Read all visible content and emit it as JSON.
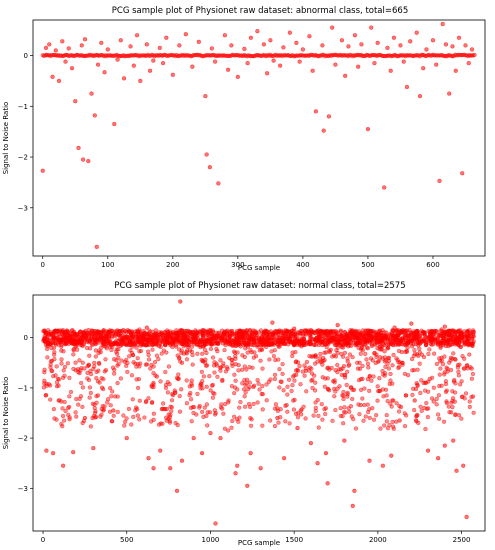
{
  "chart_data": [
    {
      "type": "scatter",
      "title": "PCG sample plot of Physionet raw dataset: abnormal class, total=665",
      "xlabel": "PCG sample",
      "ylabel": "Signal to Noise Ratio",
      "xlim": [
        -15,
        680
      ],
      "ylim": [
        -3.95,
        0.7
      ],
      "xticks": [
        0,
        100,
        200,
        300,
        400,
        500,
        600
      ],
      "yticks": [
        0,
        -1,
        -2,
        -3
      ],
      "grid": false,
      "legend": "none",
      "total": 665,
      "marker_color": "#ff0000",
      "points": [
        [
          0,
          -2.27
        ],
        [
          15,
          -0.42
        ],
        [
          25,
          -0.5
        ],
        [
          50,
          -0.9
        ],
        [
          55,
          -1.82
        ],
        [
          62,
          -2.05
        ],
        [
          70,
          -2.08
        ],
        [
          75,
          -0.75
        ],
        [
          80,
          -1.18
        ],
        [
          83,
          -3.77
        ],
        [
          95,
          -0.33
        ],
        [
          110,
          -1.35
        ],
        [
          125,
          -0.45
        ],
        [
          150,
          -0.5
        ],
        [
          170,
          -0.1
        ],
        [
          200,
          -0.38
        ],
        [
          250,
          -0.8
        ],
        [
          252,
          -1.95
        ],
        [
          257,
          -2.2
        ],
        [
          270,
          -2.52
        ],
        [
          300,
          -0.42
        ],
        [
          355,
          -0.1
        ],
        [
          420,
          -1.1
        ],
        [
          432,
          -1.48
        ],
        [
          440,
          -1.2
        ],
        [
          500,
          -1.45
        ],
        [
          525,
          -2.6
        ],
        [
          560,
          -0.62
        ],
        [
          580,
          -0.8
        ],
        [
          610,
          -2.47
        ],
        [
          625,
          -0.75
        ],
        [
          645,
          -2.32
        ],
        [
          5,
          0.15
        ],
        [
          10,
          0.22
        ],
        [
          20,
          0.1
        ],
        [
          30,
          0.28
        ],
        [
          40,
          0.14
        ],
        [
          60,
          0.2
        ],
        [
          65,
          0.32
        ],
        [
          90,
          0.25
        ],
        [
          100,
          0.12
        ],
        [
          120,
          0.3
        ],
        [
          135,
          0.18
        ],
        [
          145,
          0.4
        ],
        [
          160,
          0.22
        ],
        [
          180,
          0.15
        ],
        [
          190,
          0.35
        ],
        [
          210,
          0.2
        ],
        [
          220,
          0.42
        ],
        [
          240,
          0.27
        ],
        [
          260,
          0.14
        ],
        [
          280,
          0.4
        ],
        [
          290,
          0.2
        ],
        [
          310,
          0.13
        ],
        [
          320,
          0.35
        ],
        [
          330,
          0.48
        ],
        [
          340,
          0.22
        ],
        [
          350,
          0.3
        ],
        [
          370,
          0.16
        ],
        [
          380,
          0.45
        ],
        [
          390,
          0.25
        ],
        [
          400,
          0.12
        ],
        [
          410,
          0.38
        ],
        [
          430,
          0.2
        ],
        [
          445,
          0.55
        ],
        [
          460,
          0.3
        ],
        [
          470,
          0.18
        ],
        [
          480,
          0.4
        ],
        [
          490,
          0.22
        ],
        [
          505,
          0.55
        ],
        [
          515,
          0.25
        ],
        [
          530,
          0.15
        ],
        [
          540,
          0.35
        ],
        [
          550,
          0.2
        ],
        [
          565,
          0.28
        ],
        [
          575,
          0.45
        ],
        [
          590,
          0.12
        ],
        [
          600,
          0.3
        ],
        [
          615,
          0.62
        ],
        [
          620,
          0.22
        ],
        [
          630,
          0.18
        ],
        [
          640,
          0.35
        ],
        [
          650,
          0.2
        ],
        [
          660,
          0.12
        ],
        [
          35,
          -0.12
        ],
        [
          45,
          -0.25
        ],
        [
          85,
          -0.18
        ],
        [
          115,
          -0.08
        ],
        [
          140,
          -0.2
        ],
        [
          165,
          -0.3
        ],
        [
          185,
          -0.15
        ],
        [
          230,
          -0.22
        ],
        [
          265,
          -0.12
        ],
        [
          285,
          -0.28
        ],
        [
          315,
          -0.15
        ],
        [
          345,
          -0.35
        ],
        [
          365,
          -0.2
        ],
        [
          395,
          -0.12
        ],
        [
          415,
          -0.3
        ],
        [
          450,
          -0.18
        ],
        [
          465,
          -0.4
        ],
        [
          485,
          -0.22
        ],
        [
          510,
          -0.15
        ],
        [
          535,
          -0.3
        ],
        [
          555,
          -0.12
        ],
        [
          585,
          -0.25
        ],
        [
          605,
          -0.18
        ],
        [
          635,
          -0.3
        ],
        [
          655,
          -0.15
        ]
      ],
      "baseline_y": 0,
      "baseline_x_range": [
        0,
        664
      ]
    },
    {
      "type": "scatter",
      "title": "PCG sample plot of Physionet raw dataset: normal class, total=2575",
      "xlabel": "PCG sample",
      "ylabel": "Signal to Noise Ratio",
      "xlim": [
        -60,
        2640
      ],
      "ylim": [
        -3.85,
        0.85
      ],
      "xticks": [
        0,
        500,
        1000,
        1500,
        2000,
        2500
      ],
      "yticks": [
        0,
        -1,
        -2,
        -3
      ],
      "grid": false,
      "legend": "none",
      "total": 2575,
      "marker_color": "#ff0000",
      "points": [
        [
          20,
          -2.25
        ],
        [
          60,
          -2.3
        ],
        [
          120,
          -2.55
        ],
        [
          180,
          -2.28
        ],
        [
          250,
          -1.6
        ],
        [
          300,
          -2.2
        ],
        [
          420,
          -1.45
        ],
        [
          500,
          -2.0
        ],
        [
          630,
          -2.4
        ],
        [
          660,
          -2.6
        ],
        [
          700,
          -2.25
        ],
        [
          760,
          -2.6
        ],
        [
          800,
          -3.05
        ],
        [
          830,
          -2.45
        ],
        [
          900,
          -2.0
        ],
        [
          950,
          -2.3
        ],
        [
          1000,
          -1.9
        ],
        [
          1030,
          -3.7
        ],
        [
          1060,
          -2.0
        ],
        [
          1150,
          -2.7
        ],
        [
          1160,
          -2.55
        ],
        [
          1220,
          -2.95
        ],
        [
          1240,
          -2.3
        ],
        [
          1300,
          -2.6
        ],
        [
          1400,
          -1.6
        ],
        [
          1440,
          -2.4
        ],
        [
          1520,
          -1.8
        ],
        [
          1600,
          -2.1
        ],
        [
          1640,
          -2.5
        ],
        [
          1690,
          -2.3
        ],
        [
          1700,
          -2.9
        ],
        [
          1800,
          -2.05
        ],
        [
          1850,
          -3.35
        ],
        [
          1860,
          -3.05
        ],
        [
          1950,
          -2.45
        ],
        [
          2030,
          -2.55
        ],
        [
          2080,
          -2.35
        ],
        [
          2130,
          -1.65
        ],
        [
          2220,
          -1.25
        ],
        [
          2300,
          -2.25
        ],
        [
          2360,
          -2.4
        ],
        [
          2400,
          -2.15
        ],
        [
          2450,
          -2.05
        ],
        [
          2470,
          -2.65
        ],
        [
          2510,
          -2.55
        ],
        [
          2530,
          -3.57
        ],
        [
          820,
          0.72
        ],
        [
          1370,
          0.3
        ],
        [
          620,
          0.2
        ],
        [
          1760,
          0.25
        ],
        [
          2100,
          0.2
        ],
        [
          2200,
          0.28
        ],
        [
          100,
          0.12
        ],
        [
          400,
          0.1
        ],
        [
          1000,
          0.15
        ],
        [
          1500,
          0.18
        ],
        [
          2400,
          0.22
        ]
      ],
      "dense_band": {
        "y_range": [
          -0.15,
          0.15
        ],
        "x_range": [
          0,
          2574
        ]
      },
      "spread_band": {
        "y_range": [
          -1.8,
          0.3
        ],
        "x_range": [
          0,
          2574
        ]
      }
    }
  ]
}
